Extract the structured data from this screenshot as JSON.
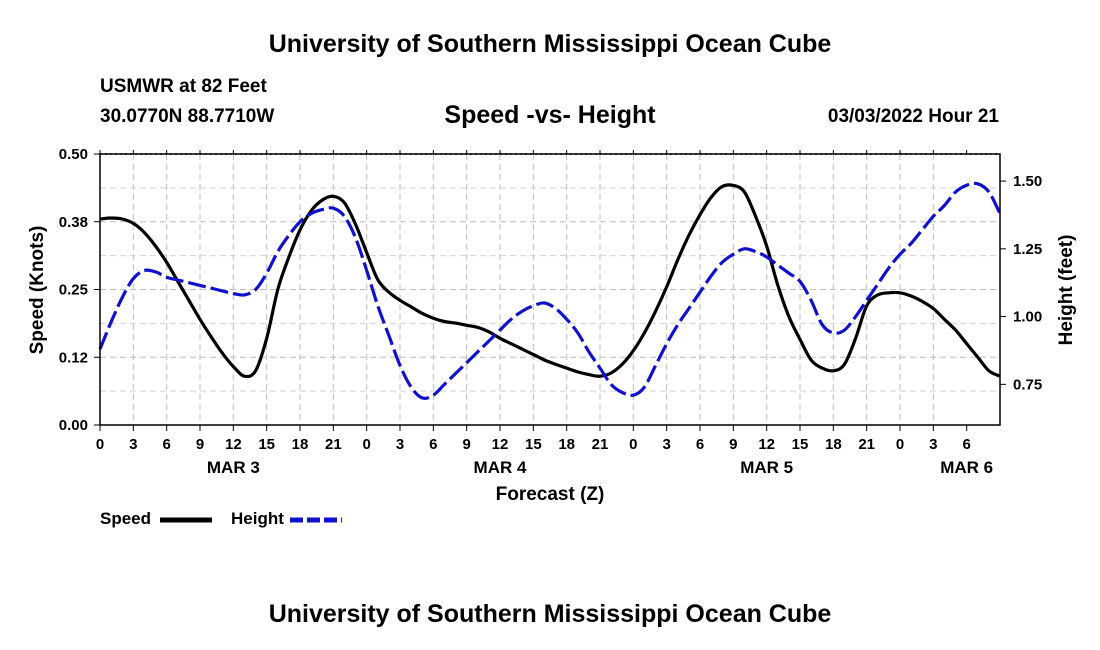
{
  "header": {
    "title": "University of Southern Mississippi Ocean Cube",
    "station": "USMWR at 82 Feet",
    "coords": "30.0770N  88.7710W",
    "subtitle": "Speed -vs- Height",
    "datetime": "03/03/2022 Hour 21"
  },
  "footer": {
    "title": "University of Southern Mississippi Ocean Cube"
  },
  "chart_data": {
    "type": "line",
    "title": "Speed -vs- Height",
    "xlabel": "Forecast (Z)",
    "ylabel_left": "Speed (Knots)",
    "ylabel_right": "Height (feet)",
    "x_range_hours": [
      0,
      81
    ],
    "x_tick_labels": [
      "0",
      "3",
      "6",
      "9",
      "12",
      "15",
      "18",
      "21",
      "0",
      "3",
      "6",
      "9",
      "12",
      "15",
      "18",
      "21",
      "0",
      "3",
      "6",
      "9",
      "12",
      "15",
      "18",
      "21",
      "0",
      "3",
      "6"
    ],
    "date_labels": [
      {
        "label": "MAR 3",
        "hour": 12
      },
      {
        "label": "MAR 4",
        "hour": 36
      },
      {
        "label": "MAR 5",
        "hour": 60
      },
      {
        "label": "MAR 6",
        "hour": 78
      }
    ],
    "ylim_left": [
      0,
      0.5
    ],
    "y_ticks_left": [
      "0.00",
      "0.12",
      "0.25",
      "0.38",
      "0.50"
    ],
    "ylim_right": [
      0.6,
      1.6
    ],
    "y_ticks_right": [
      "0.75",
      "1.00",
      "1.25",
      "1.50"
    ],
    "grid": true,
    "legend": "bottom-left",
    "series": [
      {
        "name": "Speed",
        "axis": "left",
        "color": "#000000",
        "style": "solid",
        "x": [
          0,
          1,
          2,
          3,
          4,
          5,
          6,
          7,
          8,
          9,
          10,
          11,
          12,
          13,
          14,
          15,
          16,
          17,
          18,
          19,
          20,
          21,
          22,
          23,
          24,
          25,
          26,
          27,
          28,
          29,
          30,
          31,
          32,
          33,
          34,
          35,
          36,
          37,
          38,
          39,
          40,
          41,
          42,
          43,
          44,
          45,
          46,
          47,
          48,
          49,
          50,
          51,
          52,
          53,
          54,
          55,
          56,
          57,
          58,
          59,
          60,
          61,
          62,
          63,
          64,
          65,
          66,
          67,
          68,
          69,
          70,
          71,
          72,
          73,
          74,
          75,
          76,
          77,
          78,
          79,
          80,
          81
        ],
        "values": [
          0.38,
          0.382,
          0.38,
          0.372,
          0.355,
          0.33,
          0.3,
          0.265,
          0.23,
          0.195,
          0.163,
          0.133,
          0.108,
          0.09,
          0.1,
          0.16,
          0.25,
          0.31,
          0.36,
          0.395,
          0.415,
          0.422,
          0.41,
          0.37,
          0.318,
          0.268,
          0.245,
          0.23,
          0.218,
          0.206,
          0.197,
          0.191,
          0.188,
          0.184,
          0.18,
          0.172,
          0.16,
          0.15,
          0.14,
          0.13,
          0.12,
          0.112,
          0.105,
          0.098,
          0.093,
          0.09,
          0.096,
          0.112,
          0.137,
          0.17,
          0.21,
          0.255,
          0.305,
          0.35,
          0.388,
          0.42,
          0.44,
          0.442,
          0.43,
          0.385,
          0.33,
          0.258,
          0.2,
          0.158,
          0.12,
          0.105,
          0.1,
          0.112,
          0.16,
          0.22,
          0.24,
          0.244,
          0.244,
          0.238,
          0.228,
          0.215,
          0.195,
          0.175,
          0.15,
          0.125,
          0.1,
          0.09
        ]
      },
      {
        "name": "Height",
        "axis": "right",
        "color": "#1111cc",
        "style": "dashed",
        "x": [
          0,
          1,
          2,
          3,
          4,
          5,
          6,
          7,
          8,
          9,
          10,
          11,
          12,
          13,
          14,
          15,
          16,
          17,
          18,
          19,
          20,
          21,
          22,
          23,
          24,
          25,
          26,
          27,
          28,
          29,
          30,
          31,
          32,
          33,
          34,
          35,
          36,
          37,
          38,
          39,
          40,
          41,
          42,
          43,
          44,
          45,
          46,
          47,
          48,
          49,
          50,
          51,
          52,
          53,
          54,
          55,
          56,
          57,
          58,
          59,
          60,
          61,
          62,
          63,
          64,
          65,
          66,
          67,
          68,
          69,
          70,
          71,
          72,
          73,
          74,
          75,
          76,
          77,
          78,
          79,
          80,
          81
        ],
        "values": [
          0.88,
          0.98,
          1.07,
          1.14,
          1.17,
          1.165,
          1.145,
          1.135,
          1.125,
          1.115,
          1.105,
          1.095,
          1.085,
          1.08,
          1.1,
          1.16,
          1.24,
          1.3,
          1.35,
          1.38,
          1.395,
          1.4,
          1.37,
          1.29,
          1.17,
          1.04,
          0.93,
          0.82,
          0.74,
          0.7,
          0.71,
          0.75,
          0.79,
          0.83,
          0.87,
          0.91,
          0.95,
          0.99,
          1.02,
          1.04,
          1.05,
          1.03,
          0.99,
          0.94,
          0.87,
          0.81,
          0.75,
          0.72,
          0.71,
          0.74,
          0.82,
          0.9,
          0.97,
          1.03,
          1.09,
          1.15,
          1.2,
          1.23,
          1.25,
          1.24,
          1.22,
          1.19,
          1.16,
          1.13,
          1.06,
          0.97,
          0.94,
          0.95,
          1.0,
          1.06,
          1.12,
          1.18,
          1.23,
          1.27,
          1.32,
          1.37,
          1.41,
          1.46,
          1.485,
          1.49,
          1.46,
          1.38
        ]
      }
    ]
  }
}
